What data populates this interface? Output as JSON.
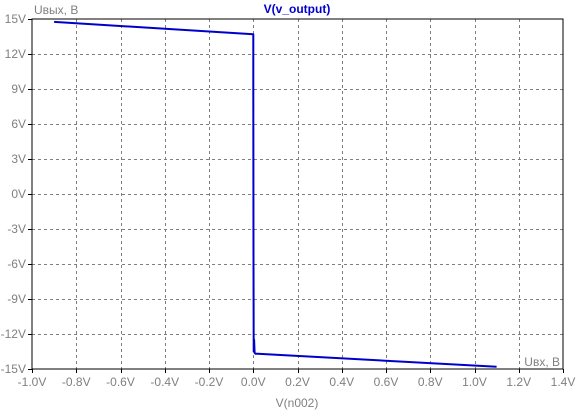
{
  "chart_data": {
    "type": "line",
    "title": "V(v_output)",
    "xlabel": "V(n002)",
    "y_annotation": "Uвых, В",
    "x_annotation": "Uвх, В",
    "xlim": [
      -1.0,
      1.4
    ],
    "ylim": [
      -15,
      15
    ],
    "x_ticks": [
      -1.0,
      -0.8,
      -0.6,
      -0.4,
      -0.2,
      0.0,
      0.2,
      0.4,
      0.6,
      0.8,
      1.0,
      1.2,
      1.4
    ],
    "x_tick_labels": [
      "-1.0V",
      "-0.8V",
      "-0.6V",
      "-0.4V",
      "-0.2V",
      "0.0V",
      "0.2V",
      "0.4V",
      "0.6V",
      "0.8V",
      "1.0V",
      "1.2V",
      "1.4V"
    ],
    "y_ticks": [
      15,
      12,
      9,
      6,
      3,
      0,
      -3,
      -6,
      -9,
      -12,
      -15
    ],
    "y_tick_labels": [
      "15V",
      "12V",
      "9V",
      "6V",
      "3V",
      "0V",
      "-3V",
      "-6V",
      "-9V",
      "-12V",
      "-15V"
    ],
    "grid": true,
    "series": [
      {
        "name": "V(v_output)",
        "color": "#0000cc",
        "x": [
          -0.9,
          0.0,
          0.0,
          0.001,
          0.002,
          0.004,
          0.006,
          0.01,
          0.02,
          1.1
        ],
        "y": [
          14.75,
          13.7,
          9.0,
          -6.0,
          -13.5,
          -12.5,
          -13.6,
          -13.7,
          -13.7,
          -14.8
        ]
      }
    ]
  }
}
